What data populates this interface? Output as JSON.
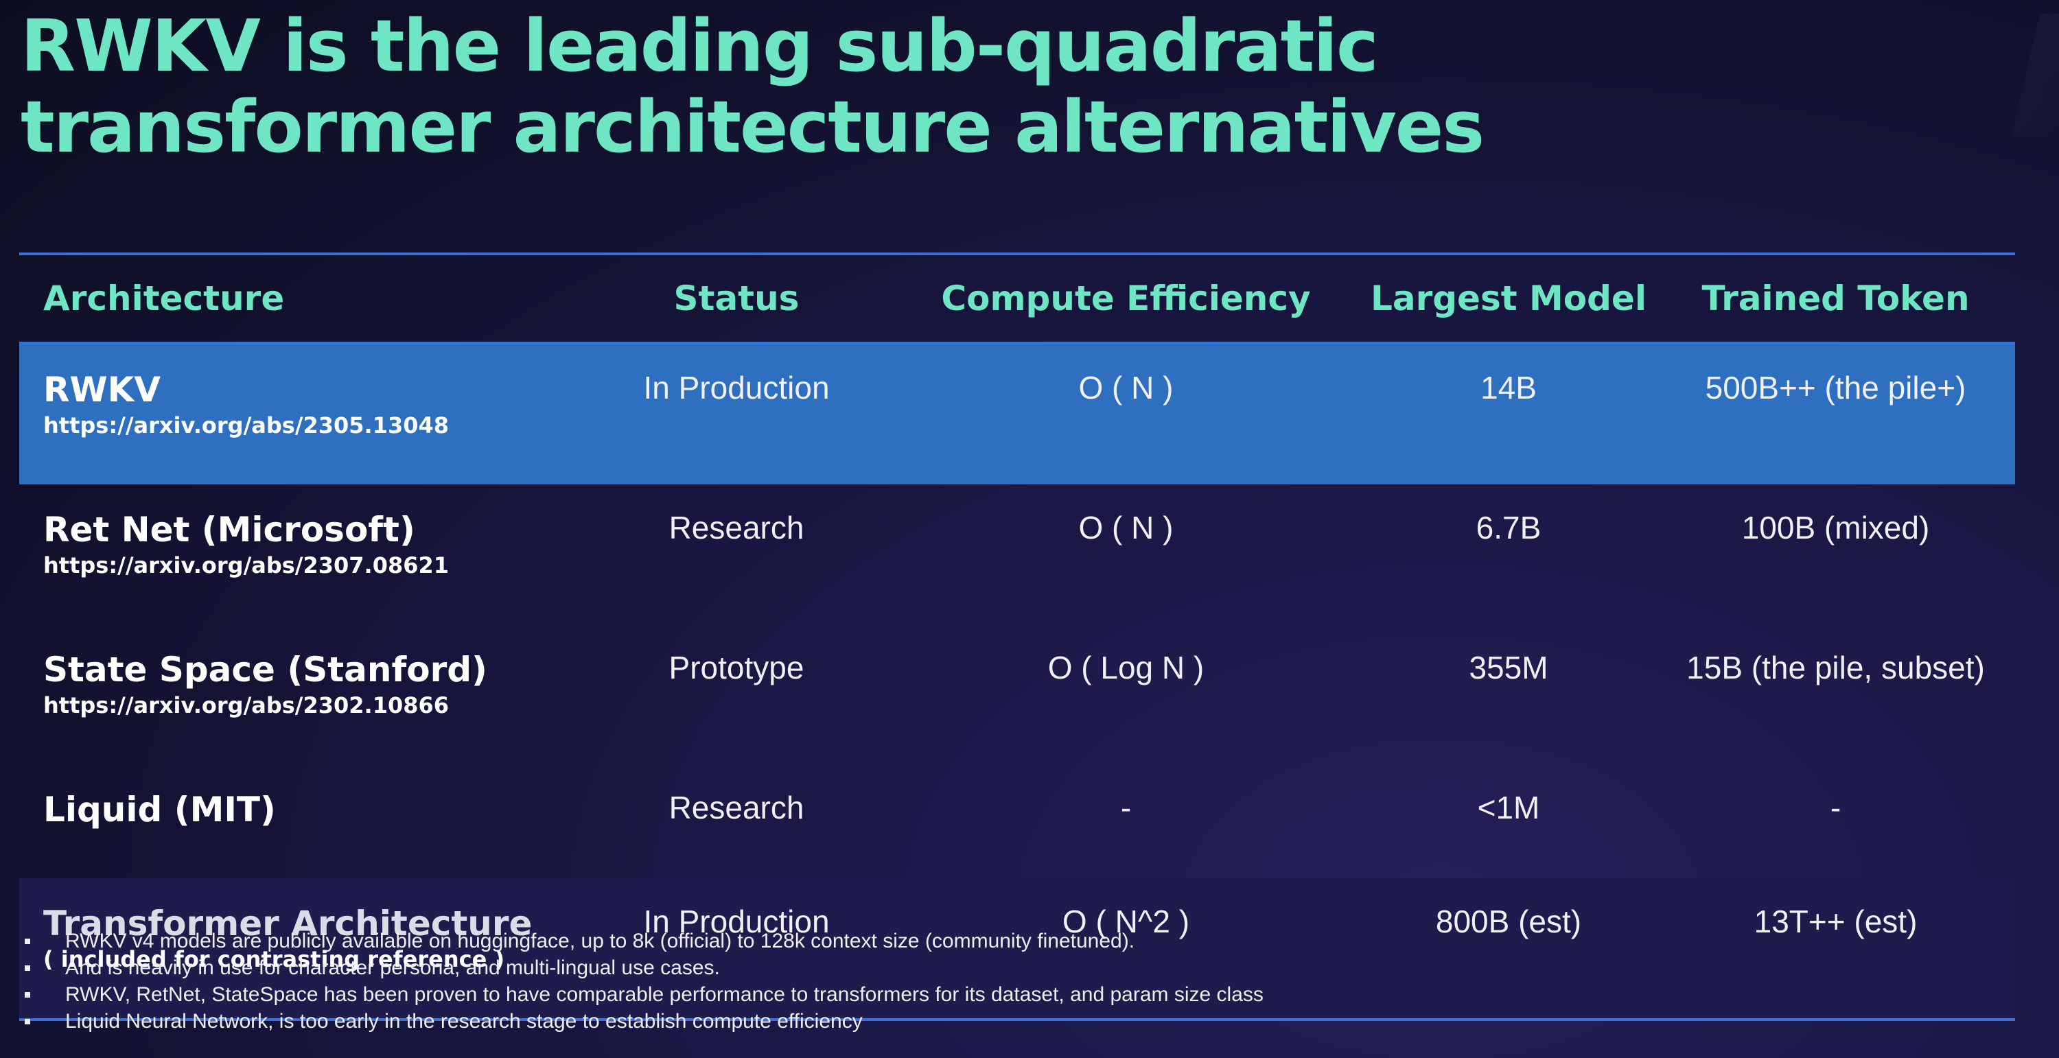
{
  "slide": {
    "title": "RWKV is the leading sub-quadratic transformer architecture alternatives"
  },
  "table": {
    "headers": {
      "architecture": "Architecture",
      "status": "Status",
      "compute_efficiency": "Compute Efficiency",
      "largest_model": "Largest Model",
      "trained_token": "Trained Token"
    },
    "rows": [
      {
        "name": "RWKV",
        "link": "https://arxiv.org/abs/2305.13048",
        "status": "In Production",
        "compute": "O ( N )",
        "largest": "14B",
        "tokens": "500B++ (the pile+)",
        "highlighted": true
      },
      {
        "name": "Ret Net (Microsoft)",
        "link": "https://arxiv.org/abs/2307.08621",
        "status": "Research",
        "compute": "O ( N )",
        "largest": "6.7B",
        "tokens": "100B (mixed)"
      },
      {
        "name": "State Space (Stanford)",
        "link": "https://arxiv.org/abs/2302.10866",
        "status": "Prototype",
        "compute": "O ( Log N )",
        "largest": "355M",
        "tokens": "15B (the pile, subset)"
      },
      {
        "name": "Liquid (MIT)",
        "status": "Research",
        "compute": "-",
        "largest": "<1M",
        "tokens": "-"
      },
      {
        "name": "Transformer Architecture",
        "note": "( included for contrasting reference )",
        "status": "In Production",
        "compute": "O ( N^2 )",
        "largest": "800B (est)",
        "tokens": "13T++ (est)",
        "reference": true
      }
    ]
  },
  "notes": [
    "RWKV v4 models are publicly available on huggingface, up to 8k (official) to 128k context size (community finetuned).",
    "And is heavily in use for character persona, and multi-lingual use cases.",
    "RWKV, RetNet, StateSpace has been proven to have comparable performance to transformers for its dataset, and param size class",
    "Liquid Neural Network, is too early in the research stage to establish compute efficiency"
  ],
  "colors": {
    "title_accent": "#6ee6c3",
    "rule_blue": "#3b6fd6",
    "highlight_row": "#2e6fc0",
    "reference_row": "#1d1c4c",
    "background": "#14132f"
  }
}
